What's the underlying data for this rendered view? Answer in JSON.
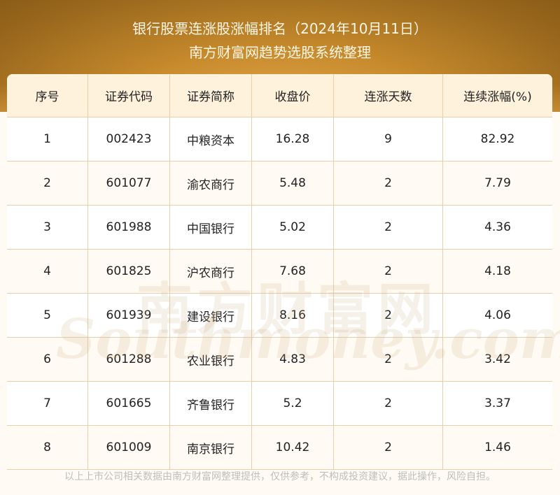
{
  "header": {
    "title": "银行股票连涨股涨幅排名（2024年10月11日）",
    "subtitle": "南方财富网趋势选股系统整理"
  },
  "table": {
    "columns": [
      "序号",
      "证券代码",
      "证券简称",
      "收盘价",
      "连涨天数",
      "连续涨幅(%)"
    ],
    "rows": [
      [
        "1",
        "002423",
        "中粮资本",
        "16.28",
        "9",
        "82.92"
      ],
      [
        "2",
        "601077",
        "渝农商行",
        "5.48",
        "2",
        "7.79"
      ],
      [
        "3",
        "601988",
        "中国银行",
        "5.02",
        "2",
        "4.36"
      ],
      [
        "4",
        "601825",
        "沪农商行",
        "7.68",
        "2",
        "4.18"
      ],
      [
        "5",
        "601939",
        "建设银行",
        "8.16",
        "2",
        "4.06"
      ],
      [
        "6",
        "601288",
        "农业银行",
        "4.83",
        "2",
        "3.42"
      ],
      [
        "7",
        "601665",
        "齐鲁银行",
        "5.2",
        "2",
        "3.37"
      ],
      [
        "8",
        "601009",
        "南京银行",
        "10.42",
        "2",
        "1.46"
      ]
    ]
  },
  "watermark": {
    "cn": "南方财富网",
    "en": "Southmoney.com"
  },
  "footer": "以上上市公司相关数据由南方财富网整理提供，仅供参考，不构成投资建议，据此操作，风险自担。",
  "colors": {
    "header_bg": "#fff2dc",
    "border": "#e8cfa8",
    "banner": "#b47b25"
  }
}
